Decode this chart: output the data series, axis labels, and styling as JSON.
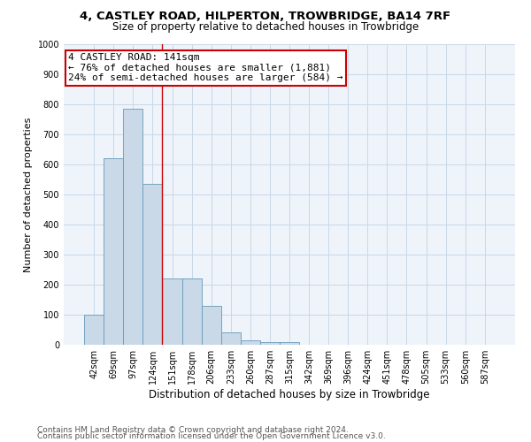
{
  "title_line1": "4, CASTLEY ROAD, HILPERTON, TROWBRIDGE, BA14 7RF",
  "title_line2": "Size of property relative to detached houses in Trowbridge",
  "xlabel": "Distribution of detached houses by size in Trowbridge",
  "ylabel": "Number of detached properties",
  "categories": [
    "42sqm",
    "69sqm",
    "97sqm",
    "124sqm",
    "151sqm",
    "178sqm",
    "206sqm",
    "233sqm",
    "260sqm",
    "287sqm",
    "315sqm",
    "342sqm",
    "369sqm",
    "396sqm",
    "424sqm",
    "451sqm",
    "478sqm",
    "505sqm",
    "533sqm",
    "560sqm",
    "587sqm"
  ],
  "values": [
    100,
    620,
    785,
    535,
    220,
    220,
    130,
    40,
    15,
    10,
    10,
    0,
    0,
    0,
    0,
    0,
    0,
    0,
    0,
    0,
    0
  ],
  "bar_color": "#c9d9e8",
  "bar_edge_color": "#6699bb",
  "property_line_x": 3.5,
  "annotation_title": "4 CASTLEY ROAD: 141sqm",
  "annotation_line1": "← 76% of detached houses are smaller (1,881)",
  "annotation_line2": "24% of semi-detached houses are larger (584) →",
  "annotation_box_color": "#ffffff",
  "annotation_box_edge": "#cc0000",
  "vline_color": "#cc0000",
  "ylim": [
    0,
    1000
  ],
  "yticks": [
    0,
    100,
    200,
    300,
    400,
    500,
    600,
    700,
    800,
    900,
    1000
  ],
  "grid_color": "#c8d8e8",
  "footer_line1": "Contains HM Land Registry data © Crown copyright and database right 2024.",
  "footer_line2": "Contains public sector information licensed under the Open Government Licence v3.0.",
  "bg_color": "#eef4fa",
  "title_fontsize": 9.5,
  "subtitle_fontsize": 8.5,
  "xlabel_fontsize": 8.5,
  "ylabel_fontsize": 8,
  "tick_fontsize": 7,
  "footer_fontsize": 6.5,
  "annotation_fontsize": 8
}
